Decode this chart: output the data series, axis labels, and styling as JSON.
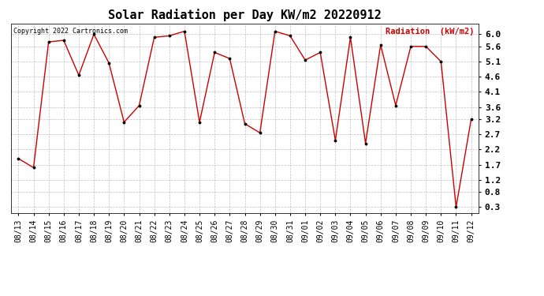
{
  "title": "Solar Radiation per Day KW/m2 20220912",
  "copyright_text": "Copyright 2022 Cartronics.com",
  "legend_label": "Radiation  (kW/m2)",
  "dates": [
    "08/13",
    "08/14",
    "08/15",
    "08/16",
    "08/17",
    "08/18",
    "08/19",
    "08/20",
    "08/21",
    "08/22",
    "08/23",
    "08/24",
    "08/25",
    "08/26",
    "08/27",
    "08/28",
    "08/29",
    "08/30",
    "08/31",
    "09/01",
    "09/02",
    "09/03",
    "09/04",
    "09/05",
    "09/06",
    "09/07",
    "09/08",
    "09/09",
    "09/10",
    "09/11",
    "09/12"
  ],
  "values": [
    1.9,
    1.6,
    5.75,
    5.8,
    4.65,
    6.0,
    5.05,
    3.1,
    3.65,
    5.9,
    5.95,
    6.1,
    3.1,
    5.4,
    5.2,
    3.05,
    2.75,
    6.1,
    5.95,
    5.15,
    5.4,
    2.5,
    5.9,
    2.4,
    5.65,
    3.65,
    5.6,
    5.6,
    5.1,
    0.3,
    3.2
  ],
  "line_color": "#cc0000",
  "marker_color": "#000000",
  "background_color": "#ffffff",
  "grid_color": "#b0b0b0",
  "title_fontsize": 11,
  "tick_fontsize": 7,
  "ylabel_ticks": [
    0.3,
    0.8,
    1.2,
    1.7,
    2.2,
    2.7,
    3.2,
    3.6,
    4.1,
    4.6,
    5.1,
    5.6,
    6.0
  ],
  "ylim": [
    0.1,
    6.35
  ],
  "legend_color": "#cc0000",
  "copyright_fontsize": 6,
  "legend_fontsize": 7.5
}
